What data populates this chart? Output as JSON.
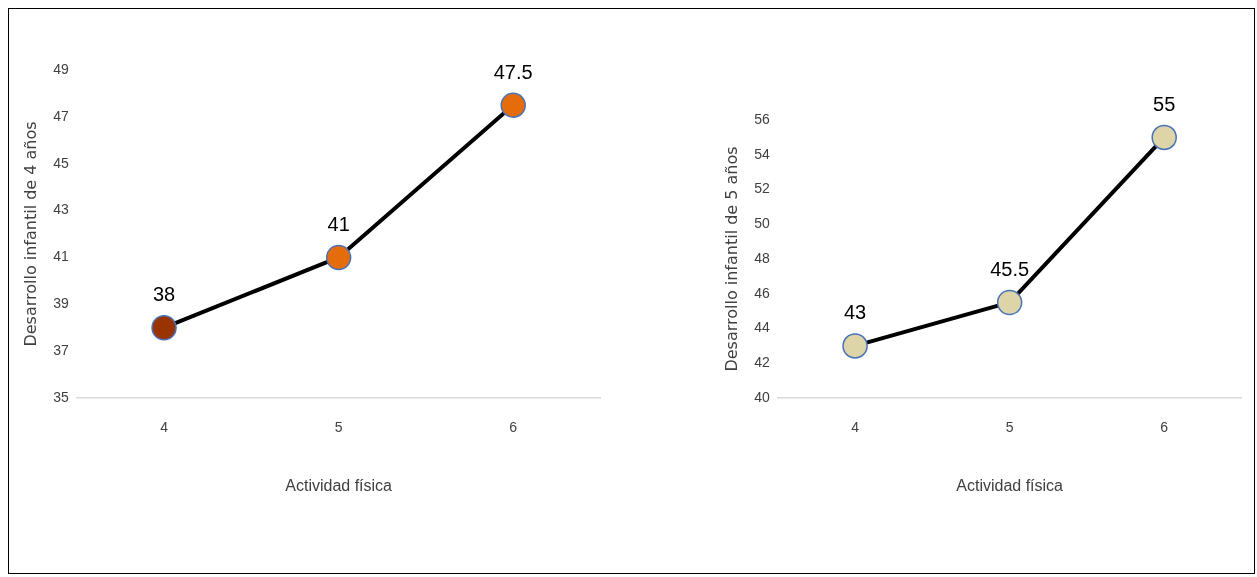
{
  "chart_data": [
    {
      "type": "line",
      "xlabel": "Actividad física",
      "ylabel": "Desarrollo infantil de 4 años",
      "categories": [
        "4",
        "5",
        "6"
      ],
      "series": [
        {
          "color": "#000000",
          "colors": [
            "#993300",
            "#e46c0a",
            "#e46c0a"
          ],
          "values": [
            38,
            41,
            47.5
          ]
        }
      ],
      "ylim": [
        35,
        49
      ],
      "yticks": [
        35,
        37,
        39,
        41,
        43,
        45,
        47,
        49
      ],
      "grid": false,
      "legend": false,
      "marker": "circle",
      "line_style": "solid",
      "data_labels": true
    },
    {
      "type": "line",
      "xlabel": "Actividad física",
      "ylabel": "Desarrollo infantil de 5 años",
      "categories": [
        "4",
        "5",
        "6"
      ],
      "series": [
        {
          "color": "#000000",
          "colors": [
            "#ddd5a8",
            "#ddd5a8",
            "#ddd5a8"
          ],
          "values": [
            43,
            45.5,
            55
          ]
        }
      ],
      "ylim": [
        40,
        56
      ],
      "yticks": [
        40,
        42,
        44,
        46,
        48,
        50,
        52,
        54,
        56
      ],
      "grid": false,
      "legend": false,
      "marker": "circle",
      "line_style": "solid",
      "data_labels": true
    }
  ]
}
